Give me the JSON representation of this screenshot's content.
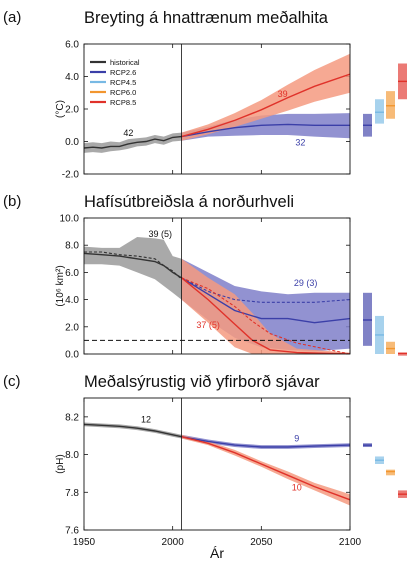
{
  "figure": {
    "x_label": "Ár",
    "x_ticks": [
      "1950",
      "2000",
      "2050",
      "2100"
    ]
  },
  "colors": {
    "historical": "#333333",
    "rcp26": "#3b3fa8",
    "rcp45": "#78b9e4",
    "rcp60": "#f2962f",
    "rcp85": "#e0322a",
    "hist_band": "#9a9a9a",
    "rcp26_band": "#7f7fc9",
    "rcp85_band": "#f49a80"
  },
  "chart_data": [
    {
      "panel": "(a)",
      "type": "line",
      "title": "Breyting á hnattrænum meðalhita",
      "ylabel": "(°C)",
      "xlim": [
        1950,
        2100
      ],
      "ylim": [
        -2.0,
        6.0
      ],
      "y_ticks": [
        "-2.0",
        "0.0",
        "2.0",
        "4.0",
        "6.0"
      ],
      "legend": [
        "historical",
        "RCP2.6",
        "RCP4.5",
        "RCP6.0",
        "RCP8.5"
      ],
      "legend_position": "top-left",
      "annotations": [
        {
          "text": "42",
          "series": "historical",
          "x": 1975,
          "y": 0.35
        },
        {
          "text": "39",
          "series": "RCP8.5",
          "x": 2062,
          "y": 2.75
        },
        {
          "text": "32",
          "series": "RCP2.6",
          "x": 2072,
          "y": -0.25
        }
      ],
      "series": [
        {
          "name": "historical",
          "x": [
            1950,
            1955,
            1960,
            1965,
            1970,
            1975,
            1980,
            1985,
            1990,
            1995,
            2000,
            2005
          ],
          "y": [
            -0.4,
            -0.35,
            -0.4,
            -0.3,
            -0.3,
            -0.15,
            -0.05,
            0.0,
            0.15,
            0.05,
            0.25,
            0.3
          ],
          "lower": [
            -0.7,
            -0.65,
            -0.7,
            -0.6,
            -0.55,
            -0.45,
            -0.3,
            -0.25,
            -0.1,
            -0.2,
            0.0,
            0.05
          ],
          "upper": [
            -0.1,
            -0.05,
            -0.1,
            0.0,
            -0.05,
            0.15,
            0.2,
            0.25,
            0.4,
            0.3,
            0.5,
            0.55
          ]
        },
        {
          "name": "RCP2.6",
          "x": [
            2005,
            2020,
            2035,
            2050,
            2065,
            2080,
            2100
          ],
          "y": [
            0.3,
            0.6,
            0.85,
            1.0,
            1.05,
            1.0,
            1.0
          ],
          "lower": [
            0.05,
            0.3,
            0.35,
            0.4,
            0.4,
            0.3,
            0.2
          ],
          "upper": [
            0.55,
            0.9,
            1.35,
            1.6,
            1.7,
            1.7,
            1.75
          ]
        },
        {
          "name": "RCP8.5",
          "x": [
            2005,
            2020,
            2035,
            2050,
            2065,
            2080,
            2100
          ],
          "y": [
            0.3,
            0.75,
            1.3,
            1.95,
            2.7,
            3.4,
            4.15
          ],
          "lower": [
            0.05,
            0.45,
            0.9,
            1.4,
            1.9,
            2.45,
            3.0
          ],
          "upper": [
            0.55,
            1.05,
            1.75,
            2.55,
            3.5,
            4.4,
            5.4
          ]
        }
      ],
      "bars_2081_2100": [
        {
          "name": "RCP2.6",
          "low": 0.3,
          "high": 1.7,
          "mean": 1.0
        },
        {
          "name": "RCP4.5",
          "low": 1.1,
          "high": 2.6,
          "mean": 1.8
        },
        {
          "name": "RCP6.0",
          "low": 1.4,
          "high": 3.1,
          "mean": 2.2
        },
        {
          "name": "RCP8.5",
          "low": 2.6,
          "high": 4.8,
          "mean": 3.7
        }
      ]
    },
    {
      "panel": "(b)",
      "type": "line",
      "title": "Hafísútbreiðsla á norðurhveli",
      "ylabel": "(10⁶ km²)",
      "xlim": [
        1950,
        2100
      ],
      "ylim": [
        0.0,
        10.0
      ],
      "y_ticks": [
        "0.0",
        "2.0",
        "4.0",
        "6.0",
        "8.0",
        "10.0"
      ],
      "threshold": 1.0,
      "annotations": [
        {
          "text": "39 (5)",
          "series": "historical",
          "x": 1993,
          "y": 8.6
        },
        {
          "text": "29 (3)",
          "series": "RCP2.6",
          "x": 2075,
          "y": 5.0
        },
        {
          "text": "37 (5)",
          "series": "RCP8.5",
          "x": 2020,
          "y": 1.9
        }
      ],
      "series": [
        {
          "name": "historical",
          "x": [
            1950,
            1960,
            1970,
            1980,
            1990,
            1995,
            2000,
            2005
          ],
          "y": [
            7.4,
            7.3,
            7.2,
            7.0,
            6.8,
            6.5,
            6.0,
            5.6
          ],
          "lower": [
            6.6,
            6.6,
            6.5,
            6.0,
            5.5,
            5.0,
            4.5,
            4.0
          ],
          "upper": [
            7.9,
            7.8,
            7.8,
            8.6,
            8.5,
            8.4,
            7.2,
            7.0
          ],
          "observed": [
            7.5,
            7.5,
            7.3,
            7.2,
            7.0,
            6.5,
            6.1,
            5.5
          ]
        },
        {
          "name": "RCP2.6",
          "x": [
            2005,
            2020,
            2035,
            2050,
            2065,
            2080,
            2100
          ],
          "y": [
            5.6,
            4.4,
            3.2,
            2.6,
            2.6,
            2.3,
            2.6
          ],
          "lower": [
            4.0,
            2.5,
            1.2,
            0.5,
            0.3,
            0.2,
            0.4
          ],
          "upper": [
            7.0,
            6.0,
            5.0,
            4.6,
            4.4,
            4.5,
            4.5
          ],
          "subset": [
            5.6,
            4.6,
            4.0,
            3.8,
            3.8,
            3.8,
            4.0
          ]
        },
        {
          "name": "RCP8.5",
          "x": [
            2005,
            2020,
            2035,
            2045,
            2055,
            2070,
            2100
          ],
          "y": [
            5.6,
            4.0,
            2.2,
            1.0,
            0.3,
            0.1,
            0.0
          ],
          "lower": [
            4.0,
            2.3,
            0.5,
            0.0,
            0.0,
            0.0,
            0.0
          ],
          "upper": [
            7.0,
            5.6,
            4.4,
            3.0,
            1.5,
            0.4,
            0.1
          ],
          "subset": [
            5.6,
            4.8,
            3.5,
            2.4,
            1.5,
            0.8,
            0.0
          ]
        }
      ],
      "bars_2081_2100": [
        {
          "name": "RCP2.6",
          "low": 0.6,
          "high": 4.5,
          "mean": 2.5
        },
        {
          "name": "RCP4.5",
          "low": 0.0,
          "high": 2.8,
          "mean": 1.4
        },
        {
          "name": "RCP6.0",
          "low": 0.0,
          "high": 0.9,
          "mean": 0.4
        },
        {
          "name": "RCP8.5",
          "low": 0.0,
          "high": 0.1,
          "mean": 0.05
        }
      ]
    },
    {
      "panel": "(c)",
      "type": "line",
      "title": "Meðalsýrustig við yfirborð sjávar",
      "ylabel": "(pH)",
      "xlim": [
        1950,
        2100
      ],
      "ylim": [
        7.6,
        8.3
      ],
      "y_ticks": [
        "7.6",
        "7.8",
        "8.0",
        "8.2"
      ],
      "annotations": [
        {
          "text": "12",
          "series": "historical",
          "x": 1985,
          "y": 8.17
        },
        {
          "text": "9",
          "series": "RCP2.6",
          "x": 2070,
          "y": 8.07
        },
        {
          "text": "10",
          "series": "RCP8.5",
          "x": 2070,
          "y": 7.81
        }
      ],
      "series": [
        {
          "name": "historical",
          "x": [
            1950,
            1960,
            1970,
            1980,
            1990,
            2000,
            2005
          ],
          "y": [
            8.16,
            8.155,
            8.15,
            8.14,
            8.125,
            8.105,
            8.095
          ],
          "lower": [
            8.15,
            8.145,
            8.14,
            8.13,
            8.115,
            8.095,
            8.085
          ],
          "upper": [
            8.17,
            8.165,
            8.16,
            8.15,
            8.135,
            8.115,
            8.105
          ]
        },
        {
          "name": "RCP2.6",
          "x": [
            2005,
            2020,
            2035,
            2050,
            2065,
            2080,
            2100
          ],
          "y": [
            8.095,
            8.07,
            8.05,
            8.04,
            8.04,
            8.045,
            8.05
          ],
          "lower": [
            8.085,
            8.06,
            8.04,
            8.03,
            8.03,
            8.035,
            8.04
          ],
          "upper": [
            8.105,
            8.08,
            8.06,
            8.05,
            8.05,
            8.055,
            8.06
          ]
        },
        {
          "name": "RCP8.5",
          "x": [
            2005,
            2020,
            2035,
            2050,
            2065,
            2080,
            2100
          ],
          "y": [
            8.095,
            8.06,
            8.01,
            7.95,
            7.89,
            7.83,
            7.76
          ],
          "lower": [
            8.085,
            8.05,
            7.995,
            7.935,
            7.87,
            7.81,
            7.73
          ],
          "upper": [
            8.105,
            8.07,
            8.025,
            7.965,
            7.91,
            7.85,
            7.79
          ]
        }
      ],
      "bars_2081_2100": [
        {
          "name": "RCP2.6",
          "low": 8.04,
          "high": 8.06,
          "mean": 8.05
        },
        {
          "name": "RCP4.5",
          "low": 7.95,
          "high": 7.99,
          "mean": 7.97
        },
        {
          "name": "RCP6.0",
          "low": 7.89,
          "high": 7.92,
          "mean": 7.91
        },
        {
          "name": "RCP8.5",
          "low": 7.77,
          "high": 7.81,
          "mean": 7.79
        }
      ]
    }
  ]
}
